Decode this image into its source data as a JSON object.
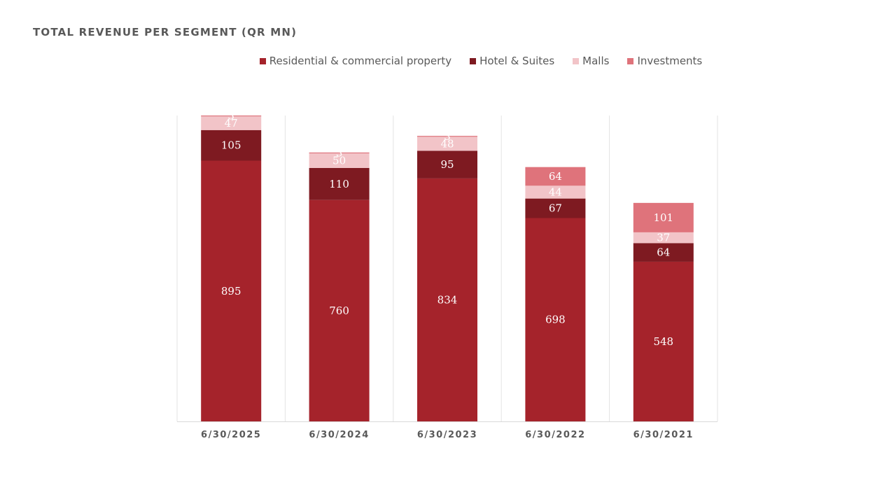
{
  "chart_data": {
    "type": "bar",
    "stacked": true,
    "title": "TOTAL REVENUE PER SEGMENT (QR MN)",
    "categories": [
      "6/30/2025",
      "6/30/2024",
      "6/30/2023",
      "6/30/2022",
      "6/30/2021"
    ],
    "series": [
      {
        "name": "Residential & commercial property",
        "color": "#a5232b",
        "values": [
          895,
          760,
          834,
          698,
          548
        ]
      },
      {
        "name": "Hotel & Suites",
        "color": "#7e1a21",
        "values": [
          105,
          110,
          95,
          67,
          64
        ]
      },
      {
        "name": "Malls",
        "color": "#f2c4c8",
        "values": [
          47,
          50,
          48,
          44,
          37
        ]
      },
      {
        "name": "Investments",
        "color": "#df737b",
        "values": [
          3,
          3,
          3,
          64,
          101
        ]
      }
    ],
    "legend": "top-center",
    "grid": false,
    "y_visible_max": 1050
  }
}
